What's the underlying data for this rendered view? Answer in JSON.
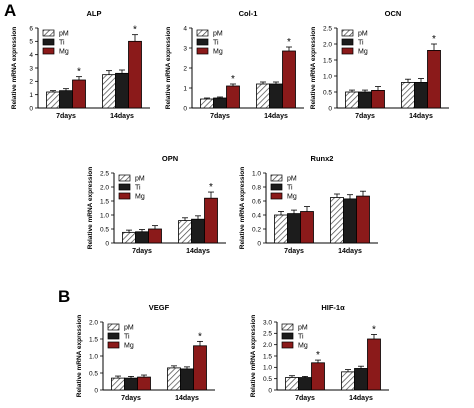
{
  "panels": {
    "A": {
      "label": "A"
    },
    "B": {
      "label": "B"
    }
  },
  "legend": {
    "pM": "pM",
    "Ti": "Ti",
    "Mg": "Mg"
  },
  "colors": {
    "pM_fill": "#ffffff",
    "pM_hatch": "#444444",
    "Ti": "#1c1c1c",
    "Mg": "#8b1a1a",
    "axis": "#000000"
  },
  "chart_data": [
    {
      "type": "bar",
      "title": "ALP",
      "ylabel": "Relative mRNA expression",
      "categories": [
        "7days",
        "14days"
      ],
      "ylim": [
        0,
        6
      ],
      "yticks": [
        0,
        1,
        2,
        3,
        4,
        5,
        6
      ],
      "series": [
        {
          "name": "pM",
          "values": [
            1.2,
            2.5
          ],
          "errors": [
            0.1,
            0.3
          ]
        },
        {
          "name": "Ti",
          "values": [
            1.3,
            2.6
          ],
          "errors": [
            0.15,
            0.25
          ]
        },
        {
          "name": "Mg",
          "values": [
            2.1,
            5.0
          ],
          "errors": [
            0.25,
            0.5
          ]
        }
      ],
      "significance": [
        {
          "category": 0,
          "series": 2,
          "mark": "*"
        },
        {
          "category": 1,
          "series": 2,
          "mark": "*"
        }
      ],
      "legend": "top-left"
    },
    {
      "type": "bar",
      "title": "Col-1",
      "ylabel": "Relative mRNA expression",
      "categories": [
        "7days",
        "14days"
      ],
      "ylim": [
        0,
        4
      ],
      "yticks": [
        0,
        1,
        2,
        3,
        4
      ],
      "series": [
        {
          "name": "pM",
          "values": [
            0.45,
            1.2
          ],
          "errors": [
            0.05,
            0.1
          ]
        },
        {
          "name": "Ti",
          "values": [
            0.5,
            1.2
          ],
          "errors": [
            0.05,
            0.1
          ]
        },
        {
          "name": "Mg",
          "values": [
            1.1,
            2.85
          ],
          "errors": [
            0.1,
            0.2
          ]
        }
      ],
      "significance": [
        {
          "category": 0,
          "series": 2,
          "mark": "*"
        },
        {
          "category": 1,
          "series": 2,
          "mark": "*"
        }
      ],
      "legend": "top-left"
    },
    {
      "type": "bar",
      "title": "OCN",
      "ylabel": "Relative mRNA expression",
      "categories": [
        "7days",
        "14days"
      ],
      "ylim": [
        0,
        2.5
      ],
      "yticks": [
        0,
        0.5,
        1.0,
        1.5,
        2.0,
        2.5
      ],
      "tick_labels": [
        "0",
        "0.5",
        "1.0",
        "1.5",
        "2.0",
        "2.5"
      ],
      "series": [
        {
          "name": "pM",
          "values": [
            0.5,
            0.8
          ],
          "errors": [
            0.06,
            0.1
          ]
        },
        {
          "name": "Ti",
          "values": [
            0.5,
            0.8
          ],
          "errors": [
            0.06,
            0.12
          ]
        },
        {
          "name": "Mg",
          "values": [
            0.55,
            1.8
          ],
          "errors": [
            0.12,
            0.2
          ]
        }
      ],
      "significance": [
        {
          "category": 1,
          "series": 2,
          "mark": "*"
        }
      ],
      "legend": "top-left"
    },
    {
      "type": "bar",
      "title": "OPN",
      "ylabel": "Relative mRNA expression",
      "categories": [
        "7days",
        "14days"
      ],
      "ylim": [
        0,
        2.5
      ],
      "yticks": [
        0,
        0.5,
        1.0,
        1.5,
        2.0,
        2.5
      ],
      "tick_labels": [
        "0",
        "0.5",
        "1.0",
        "1.5",
        "2.0",
        "2.5"
      ],
      "series": [
        {
          "name": "pM",
          "values": [
            0.38,
            0.8
          ],
          "errors": [
            0.08,
            0.1
          ]
        },
        {
          "name": "Ti",
          "values": [
            0.4,
            0.85
          ],
          "errors": [
            0.08,
            0.12
          ]
        },
        {
          "name": "Mg",
          "values": [
            0.5,
            1.6
          ],
          "errors": [
            0.12,
            0.22
          ]
        }
      ],
      "significance": [
        {
          "category": 1,
          "series": 2,
          "mark": "*"
        }
      ],
      "legend": "top-left"
    },
    {
      "type": "bar",
      "title": "Runx2",
      "ylabel": "Relative mRNA expression",
      "categories": [
        "7days",
        "14days"
      ],
      "ylim": [
        0,
        1.0
      ],
      "yticks": [
        0,
        0.2,
        0.4,
        0.6,
        0.8,
        1.0
      ],
      "tick_labels": [
        "0",
        "0.2",
        "0.4",
        "0.6",
        "0.8",
        "1.0"
      ],
      "series": [
        {
          "name": "pM",
          "values": [
            0.4,
            0.65
          ],
          "errors": [
            0.05,
            0.05
          ]
        },
        {
          "name": "Ti",
          "values": [
            0.42,
            0.63
          ],
          "errors": [
            0.05,
            0.06
          ]
        },
        {
          "name": "Mg",
          "values": [
            0.45,
            0.67
          ],
          "errors": [
            0.07,
            0.07
          ]
        }
      ],
      "significance": [],
      "legend": "top-left"
    },
    {
      "type": "bar",
      "title": "VEGF",
      "ylabel": "Relative mRNA expression",
      "categories": [
        "7days",
        "14days"
      ],
      "ylim": [
        0,
        2.0
      ],
      "yticks": [
        0,
        0.5,
        1.0,
        1.5,
        2.0
      ],
      "tick_labels": [
        "0",
        "0.5",
        "1.0",
        "1.5",
        "2.0"
      ],
      "series": [
        {
          "name": "pM",
          "values": [
            0.35,
            0.65
          ],
          "errors": [
            0.06,
            0.06
          ]
        },
        {
          "name": "Ti",
          "values": [
            0.35,
            0.62
          ],
          "errors": [
            0.05,
            0.06
          ]
        },
        {
          "name": "Mg",
          "values": [
            0.38,
            1.3
          ],
          "errors": [
            0.06,
            0.13
          ]
        }
      ],
      "significance": [
        {
          "category": 1,
          "series": 2,
          "mark": "*"
        }
      ],
      "legend": "top-left"
    },
    {
      "type": "bar",
      "title": "HIF-1α",
      "ylabel": "Relative mRNA expression",
      "categories": [
        "7days",
        "14days"
      ],
      "ylim": [
        0,
        3
      ],
      "yticks": [
        0,
        0.5,
        1.0,
        1.5,
        2.0,
        2.5,
        3.0
      ],
      "tick_labels": [
        "0",
        "0.5",
        "1.0",
        "1.5",
        "2.0",
        "2.5",
        "3.0"
      ],
      "series": [
        {
          "name": "pM",
          "values": [
            0.55,
            0.8
          ],
          "errors": [
            0.08,
            0.1
          ]
        },
        {
          "name": "Ti",
          "values": [
            0.55,
            0.95
          ],
          "errors": [
            0.05,
            0.1
          ]
        },
        {
          "name": "Mg",
          "values": [
            1.2,
            2.25
          ],
          "errors": [
            0.12,
            0.2
          ]
        }
      ],
      "significance": [
        {
          "category": 0,
          "series": 2,
          "mark": "*"
        },
        {
          "category": 1,
          "series": 2,
          "mark": "*"
        }
      ],
      "legend": "top-left"
    }
  ]
}
